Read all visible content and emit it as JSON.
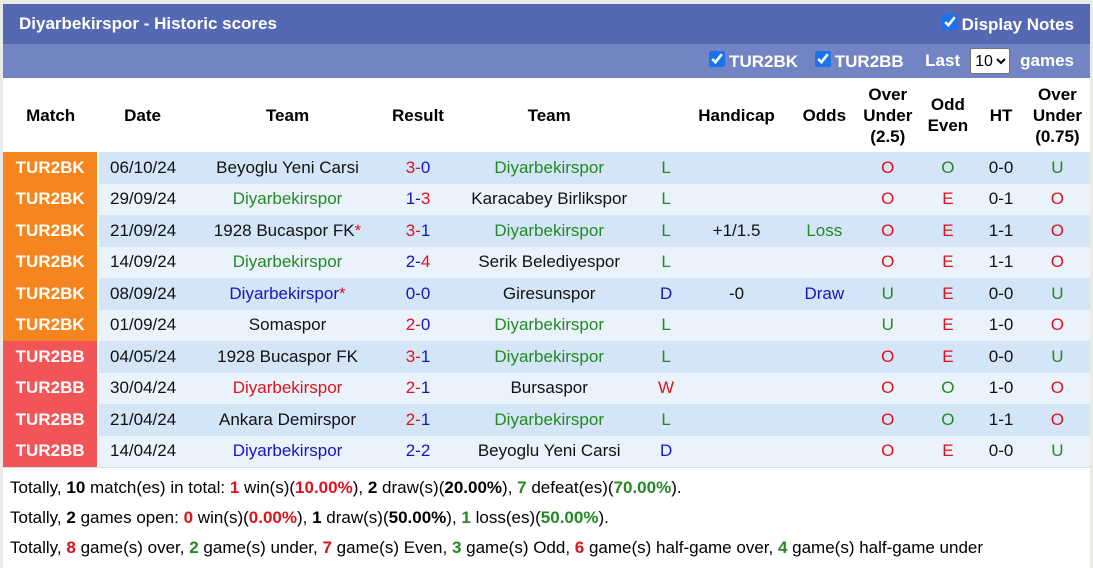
{
  "title": "Diyarbekirspor - Historic scores",
  "display_notes": "Display Notes",
  "filters": [
    {
      "label": "TUR2BK",
      "checked": true
    },
    {
      "label": "TUR2BB",
      "checked": true
    }
  ],
  "last_label": "Last",
  "last_value": "10",
  "games_label": "games",
  "colors": {
    "TUR2BK": "#f5861f",
    "TUR2BB": "#f25558"
  },
  "headers": [
    "Match",
    "Date",
    "Team",
    "Result",
    "Team",
    "",
    "Handicap",
    "Odds",
    "Over Under (2.5)",
    "Odd Even",
    "HT",
    "Over Under (0.75)"
  ],
  "rows": [
    {
      "league": "TUR2BK",
      "date": "06/10/24",
      "home": "Beyoglu Yeni Carsi",
      "hc": "blk",
      "hs": "3",
      "hsc": "red",
      "as": "0",
      "asc": "blue",
      "away": "Diyarbekirspor",
      "ac": "green",
      "res": "L",
      "resc": "green",
      "hcp": "",
      "odds": "",
      "oddsc": "",
      "ou": "O",
      "ouc": "red",
      "oe": "O",
      "oec": "green",
      "ht": "0-0",
      "ou2": "U",
      "ou2c": "green"
    },
    {
      "league": "TUR2BK",
      "date": "29/09/24",
      "home": "Diyarbekirspor",
      "hc": "green",
      "hs": "1",
      "hsc": "blue",
      "as": "3",
      "asc": "red",
      "away": "Karacabey Birlikspor",
      "ac": "blk",
      "res": "L",
      "resc": "green",
      "hcp": "",
      "odds": "",
      "oddsc": "",
      "ou": "O",
      "ouc": "red",
      "oe": "E",
      "oec": "red",
      "ht": "0-1",
      "ou2": "O",
      "ou2c": "red"
    },
    {
      "league": "TUR2BK",
      "date": "21/09/24",
      "home": "1928 Bucaspor FK",
      "star": "*",
      "hc": "blk",
      "hs": "3",
      "hsc": "red",
      "as": "1",
      "asc": "blue",
      "away": "Diyarbekirspor",
      "ac": "green",
      "res": "L",
      "resc": "green",
      "hcp": "+1/1.5",
      "odds": "Loss",
      "oddsc": "green",
      "ou": "O",
      "ouc": "red",
      "oe": "E",
      "oec": "red",
      "ht": "1-1",
      "ou2": "O",
      "ou2c": "red"
    },
    {
      "league": "TUR2BK",
      "date": "14/09/24",
      "home": "Diyarbekirspor",
      "hc": "green",
      "hs": "2",
      "hsc": "blue",
      "as": "4",
      "asc": "red",
      "away": "Serik Belediyespor",
      "ac": "blk",
      "res": "L",
      "resc": "green",
      "hcp": "",
      "odds": "",
      "oddsc": "",
      "ou": "O",
      "ouc": "red",
      "oe": "E",
      "oec": "red",
      "ht": "1-1",
      "ou2": "O",
      "ou2c": "red"
    },
    {
      "league": "TUR2BK",
      "date": "08/09/24",
      "home": "Diyarbekirspor",
      "star": "*",
      "hc": "blue",
      "hs": "0",
      "hsc": "blue",
      "as": "0",
      "asc": "blue",
      "away": "Giresunspor",
      "ac": "blk",
      "res": "D",
      "resc": "blue",
      "hcp": "-0",
      "odds": "Draw",
      "oddsc": "blue",
      "ou": "U",
      "ouc": "green",
      "oe": "E",
      "oec": "red",
      "ht": "0-0",
      "ou2": "U",
      "ou2c": "green"
    },
    {
      "league": "TUR2BK",
      "date": "01/09/24",
      "home": "Somaspor",
      "hc": "blk",
      "hs": "2",
      "hsc": "red",
      "as": "0",
      "asc": "blue",
      "away": "Diyarbekirspor",
      "ac": "green",
      "res": "L",
      "resc": "green",
      "hcp": "",
      "odds": "",
      "oddsc": "",
      "ou": "U",
      "ouc": "green",
      "oe": "E",
      "oec": "red",
      "ht": "1-0",
      "ou2": "O",
      "ou2c": "red"
    },
    {
      "league": "TUR2BB",
      "date": "04/05/24",
      "home": "1928 Bucaspor FK",
      "hc": "blk",
      "hs": "3",
      "hsc": "red",
      "as": "1",
      "asc": "blue",
      "away": "Diyarbekirspor",
      "ac": "green",
      "res": "L",
      "resc": "green",
      "hcp": "",
      "odds": "",
      "oddsc": "",
      "ou": "O",
      "ouc": "red",
      "oe": "E",
      "oec": "red",
      "ht": "0-0",
      "ou2": "U",
      "ou2c": "green"
    },
    {
      "league": "TUR2BB",
      "date": "30/04/24",
      "home": "Diyarbekirspor",
      "hc": "red",
      "hs": "2",
      "hsc": "red",
      "as": "1",
      "asc": "blue",
      "away": "Bursaspor",
      "ac": "blk",
      "res": "W",
      "resc": "red",
      "hcp": "",
      "odds": "",
      "oddsc": "",
      "ou": "O",
      "ouc": "red",
      "oe": "O",
      "oec": "green",
      "ht": "1-0",
      "ou2": "O",
      "ou2c": "red"
    },
    {
      "league": "TUR2BB",
      "date": "21/04/24",
      "home": "Ankara Demirspor",
      "hc": "blk",
      "hs": "2",
      "hsc": "red",
      "as": "1",
      "asc": "blue",
      "away": "Diyarbekirspor",
      "ac": "green",
      "res": "L",
      "resc": "green",
      "hcp": "",
      "odds": "",
      "oddsc": "",
      "ou": "O",
      "ouc": "red",
      "oe": "O",
      "oec": "green",
      "ht": "1-1",
      "ou2": "O",
      "ou2c": "red"
    },
    {
      "league": "TUR2BB",
      "date": "14/04/24",
      "home": "Diyarbekirspor",
      "hc": "blue",
      "hs": "2",
      "hsc": "blue",
      "as": "2",
      "asc": "blue",
      "away": "Beyoglu Yeni Carsi",
      "ac": "blk",
      "res": "D",
      "resc": "blue",
      "hcp": "",
      "odds": "",
      "oddsc": "",
      "ou": "O",
      "ouc": "red",
      "oe": "E",
      "oec": "red",
      "ht": "0-0",
      "ou2": "U",
      "ou2c": "green"
    }
  ],
  "summary": [
    [
      [
        "Totally, ",
        ""
      ],
      [
        "10",
        "b"
      ],
      [
        " match(es) in total: ",
        ""
      ],
      [
        "1",
        "red b"
      ],
      [
        " win(s)(",
        ""
      ],
      [
        "10.00%",
        "red b"
      ],
      [
        "), ",
        ""
      ],
      [
        "2",
        "blue b"
      ],
      [
        " draw(s)(",
        ""
      ],
      [
        "20.00%",
        "blue b"
      ],
      [
        "), ",
        ""
      ],
      [
        "7",
        "green b"
      ],
      [
        " defeat(es)(",
        ""
      ],
      [
        "70.00%",
        "green b"
      ],
      [
        ").",
        ""
      ]
    ],
    [
      [
        "Totally, ",
        ""
      ],
      [
        "2",
        "b"
      ],
      [
        " games open: ",
        ""
      ],
      [
        "0",
        "red b"
      ],
      [
        " win(s)(",
        ""
      ],
      [
        "0.00%",
        "red b"
      ],
      [
        "), ",
        ""
      ],
      [
        "1",
        "blue b"
      ],
      [
        " draw(s)(",
        ""
      ],
      [
        "50.00%",
        "blue b"
      ],
      [
        "), ",
        ""
      ],
      [
        "1",
        "green b"
      ],
      [
        " loss(es)(",
        ""
      ],
      [
        "50.00%",
        "green b"
      ],
      [
        ").",
        ""
      ]
    ],
    [
      [
        "Totally, ",
        ""
      ],
      [
        "8",
        "red b"
      ],
      [
        " game(s) over, ",
        ""
      ],
      [
        "2",
        "green b"
      ],
      [
        " game(s) under, ",
        ""
      ],
      [
        "7",
        "red b"
      ],
      [
        " game(s) Even, ",
        ""
      ],
      [
        "3",
        "green b"
      ],
      [
        " game(s) Odd, ",
        ""
      ],
      [
        "6",
        "red b"
      ],
      [
        " game(s) half-game over, ",
        ""
      ],
      [
        "4",
        "green b"
      ],
      [
        " game(s) half-game under",
        ""
      ]
    ]
  ]
}
